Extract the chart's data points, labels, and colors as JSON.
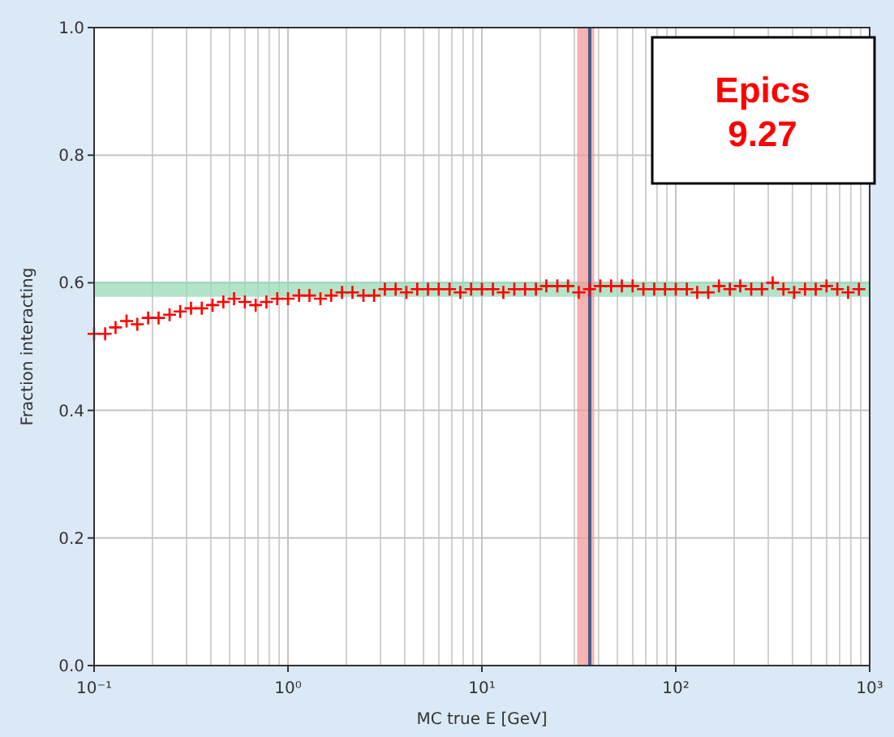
{
  "chart_data": {
    "type": "scatter",
    "xlabel": "MC true E [GeV]",
    "ylabel": "Fraction interacting",
    "log": "x",
    "grid": true,
    "marker": "cross",
    "xlim": [
      0.1,
      1000
    ],
    "ylim": [
      0,
      1
    ],
    "xticks": [
      {
        "value": 0.1,
        "label": "10⁻¹"
      },
      {
        "value": 1,
        "label": "10⁰"
      },
      {
        "value": 10,
        "label": "10¹"
      },
      {
        "value": 100,
        "label": "10²"
      },
      {
        "value": 1000,
        "label": "10³"
      }
    ],
    "yticks": [
      {
        "value": 0,
        "label": "0.0"
      },
      {
        "value": 0.2,
        "label": "0.2"
      },
      {
        "value": 0.4,
        "label": "0.4"
      },
      {
        "value": 0.6,
        "label": "0.6"
      },
      {
        "value": 0.8,
        "label": "0.8"
      },
      {
        "value": 1,
        "label": "1.0"
      }
    ],
    "x": [
      0.1,
      0.114,
      0.129,
      0.147,
      0.167,
      0.19,
      0.215,
      0.245,
      0.278,
      0.316,
      0.359,
      0.408,
      0.464,
      0.527,
      0.599,
      0.681,
      0.774,
      0.88,
      1,
      1.14,
      1.29,
      1.47,
      1.67,
      1.9,
      2.15,
      2.45,
      2.78,
      3.16,
      3.59,
      4.08,
      4.64,
      5.27,
      5.99,
      6.81,
      7.74,
      8.8,
      10,
      11.4,
      12.9,
      14.7,
      16.7,
      19,
      21.5,
      24.5,
      27.8,
      31.6,
      35.9,
      40.8,
      46.4,
      52.7,
      59.9,
      68.1,
      77.4,
      88,
      100,
      114,
      129,
      147,
      167,
      190,
      215,
      245,
      278,
      316,
      359,
      408,
      464,
      527,
      599,
      681,
      774,
      880
    ],
    "series": [
      {
        "color": "#ff0000",
        "values": [
          0.52,
          0.52,
          0.53,
          0.54,
          0.535,
          0.545,
          0.545,
          0.55,
          0.555,
          0.56,
          0.56,
          0.565,
          0.57,
          0.575,
          0.57,
          0.565,
          0.57,
          0.575,
          0.575,
          0.58,
          0.58,
          0.575,
          0.58,
          0.585,
          0.585,
          0.58,
          0.58,
          0.59,
          0.59,
          0.585,
          0.59,
          0.59,
          0.59,
          0.59,
          0.585,
          0.59,
          0.59,
          0.59,
          0.585,
          0.59,
          0.59,
          0.59,
          0.595,
          0.595,
          0.595,
          0.585,
          0.59,
          0.595,
          0.595,
          0.595,
          0.595,
          0.59,
          0.59,
          0.59,
          0.59,
          0.59,
          0.585,
          0.585,
          0.595,
          0.59,
          0.595,
          0.59,
          0.59,
          0.6,
          0.59,
          0.585,
          0.59,
          0.59,
          0.595,
          0.59,
          0.585,
          0.59
        ]
      }
    ],
    "bands": [
      {
        "axis": "y",
        "from": 0.578,
        "to": 0.602,
        "color": "#9ad9b5"
      },
      {
        "axis": "x",
        "from": 31,
        "to": 38,
        "color": "#f29a9a"
      }
    ],
    "ref_lines": [
      {
        "axis": "x",
        "value": 36,
        "color": "#4a5a8a"
      }
    ],
    "annotations": [
      "Epics 9.27"
    ]
  }
}
